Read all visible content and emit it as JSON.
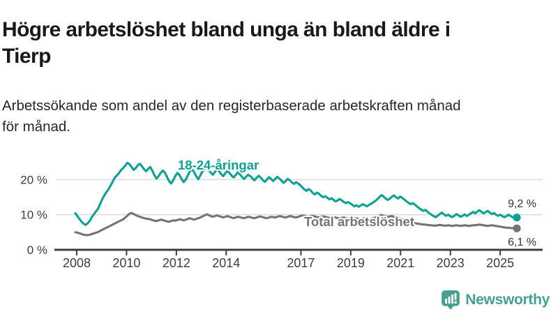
{
  "header": {
    "title_line1": "Högre arbetslöshet bland unga än bland äldre i",
    "title_line2": "Tierp",
    "subtitle_line1": "Arbetssökande som andel av den registerbaserade arbetskraften månad",
    "subtitle_line2": "för månad."
  },
  "footer": {
    "brand": "Newsworthy"
  },
  "colors": {
    "youth": "#0ba293",
    "total": "#747474",
    "grid": "#d9d9d9",
    "axis": "#3f3f3f",
    "tick_text": "#3d3d3d",
    "value_text": "#333333",
    "brand": "#45a08f"
  },
  "chart_data": {
    "type": "line",
    "title": "Högre arbetslöshet bland unga än bland äldre i Tierp",
    "subtitle": "Arbetssökande som andel av den registerbaserade arbetskraften månad för månad.",
    "x_unit": "month",
    "x_start": "2008-01",
    "x_end": "2025-09",
    "x_ticks": [
      2008,
      2010,
      2012,
      2014,
      2017,
      2019,
      2021,
      2023,
      2025
    ],
    "y_ticks": [
      0,
      10,
      20
    ],
    "y_suffix": " %",
    "ylim": [
      0,
      26
    ],
    "grid": "horizontal",
    "legend_position": "inline-labels",
    "series": [
      {
        "name": "18-24-åringar",
        "color": "#0ba293",
        "end_label": "9,2 %",
        "end_value": 9.2,
        "values": [
          10.4,
          9.6,
          8.8,
          8.0,
          7.4,
          7.1,
          7.6,
          8.3,
          9.4,
          10.2,
          11.0,
          11.8,
          13.2,
          14.5,
          15.6,
          16.5,
          17.3,
          18.4,
          19.5,
          20.6,
          21.2,
          21.9,
          22.8,
          23.3,
          24.0,
          24.8,
          24.4,
          23.6,
          22.8,
          23.3,
          24.1,
          24.5,
          23.8,
          23.0,
          22.4,
          23.1,
          23.6,
          22.5,
          21.2,
          20.3,
          21.0,
          21.9,
          22.6,
          22.0,
          20.8,
          19.6,
          18.9,
          19.8,
          21.0,
          21.9,
          21.3,
          20.2,
          19.3,
          20.0,
          21.2,
          22.4,
          23.0,
          22.2,
          21.0,
          20.1,
          21.2,
          22.3,
          23.1,
          23.6,
          22.9,
          22.0,
          21.4,
          22.2,
          23.0,
          22.4,
          21.6,
          21.0,
          21.8,
          22.5,
          21.9,
          21.2,
          20.6,
          21.3,
          22.1,
          21.5,
          20.8,
          20.2,
          20.8,
          21.4,
          21.0,
          20.4,
          19.8,
          20.5,
          21.1,
          20.6,
          19.9,
          19.4,
          20.0,
          20.7,
          20.2,
          19.6,
          20.2,
          20.8,
          20.3,
          19.7,
          19.1,
          19.6,
          20.2,
          19.8,
          19.2,
          18.8,
          19.3,
          18.9,
          18.4,
          17.8,
          17.2,
          16.8,
          17.3,
          16.9,
          16.2,
          15.8,
          16.3,
          16.0,
          15.4,
          15.0,
          15.3,
          14.8,
          14.4,
          14.7,
          14.2,
          13.8,
          14.1,
          14.5,
          14.0,
          13.6,
          13.3,
          13.6,
          13.2,
          12.8,
          12.4,
          12.7,
          12.3,
          12.6,
          13.0,
          12.7,
          12.4,
          12.8,
          13.1,
          13.5,
          13.9,
          14.4,
          15.0,
          15.6,
          15.2,
          14.6,
          14.2,
          14.6,
          15.1,
          15.5,
          15.0,
          14.6,
          15.2,
          14.8,
          14.3,
          13.8,
          13.4,
          13.0,
          13.3,
          12.9,
          12.4,
          11.9,
          11.5,
          11.1,
          11.4,
          10.9,
          10.4,
          10.0,
          9.6,
          9.3,
          9.7,
          10.2,
          10.6,
          10.1,
          9.7,
          10.0,
          9.6,
          9.3,
          9.7,
          10.2,
          9.8,
          9.4,
          9.7,
          10.1,
          9.6,
          10.0,
          10.4,
          10.8,
          10.4,
          10.9,
          11.3,
          10.8,
          10.4,
          10.7,
          11.1,
          10.6,
          10.2,
          10.5,
          10.0,
          9.7,
          10.0,
          9.6,
          9.3,
          9.6,
          10.0,
          9.6,
          9.3,
          9.0,
          9.2
        ]
      },
      {
        "name": "Total arbetslöshet",
        "color": "#747474",
        "end_label": "6,1 %",
        "end_value": 6.1,
        "values": [
          5.0,
          4.9,
          4.7,
          4.5,
          4.3,
          4.2,
          4.2,
          4.3,
          4.5,
          4.7,
          4.9,
          5.1,
          5.4,
          5.7,
          6.0,
          6.3,
          6.6,
          6.9,
          7.2,
          7.5,
          7.8,
          8.1,
          8.4,
          8.7,
          9.2,
          9.7,
          10.3,
          10.5,
          10.2,
          9.9,
          9.6,
          9.4,
          9.2,
          9.0,
          8.9,
          8.8,
          8.7,
          8.5,
          8.3,
          8.2,
          8.4,
          8.6,
          8.5,
          8.3,
          8.1,
          8.0,
          8.2,
          8.4,
          8.3,
          8.5,
          8.7,
          8.6,
          8.4,
          8.6,
          8.8,
          9.0,
          8.8,
          8.6,
          8.8,
          9.0,
          9.2,
          9.5,
          9.8,
          10.1,
          9.9,
          9.6,
          9.4,
          9.6,
          9.8,
          9.6,
          9.4,
          9.2,
          9.4,
          9.6,
          9.4,
          9.2,
          9.0,
          9.2,
          9.4,
          9.3,
          9.1,
          9.0,
          9.2,
          9.4,
          9.3,
          9.1,
          9.0,
          9.2,
          9.4,
          9.5,
          9.3,
          9.1,
          9.0,
          9.2,
          9.4,
          9.3,
          9.2,
          9.4,
          9.6,
          9.5,
          9.3,
          9.2,
          9.4,
          9.6,
          9.5,
          9.3,
          9.2,
          9.4,
          9.6,
          9.8,
          9.7,
          9.5,
          9.4,
          9.6,
          9.7,
          9.5,
          9.3,
          9.2,
          9.4,
          9.5,
          9.4,
          9.2,
          9.1,
          9.3,
          9.4,
          9.2,
          9.0,
          8.9,
          9.1,
          9.2,
          9.0,
          8.9,
          8.8,
          8.7,
          8.9,
          9.0,
          8.8,
          8.7,
          8.9,
          9.0,
          8.8,
          8.7,
          8.8,
          9.0,
          9.2,
          9.4,
          9.7,
          9.9,
          9.7,
          9.5,
          9.4,
          9.5,
          9.6,
          9.4,
          9.2,
          9.0,
          8.9,
          8.7,
          8.5,
          8.3,
          8.1,
          7.9,
          7.8,
          7.6,
          7.5,
          7.4,
          7.3,
          7.2,
          7.2,
          7.1,
          7.0,
          7.0,
          6.9,
          6.9,
          7.0,
          7.1,
          7.0,
          6.9,
          6.9,
          7.0,
          6.9,
          6.8,
          6.9,
          7.0,
          6.9,
          6.8,
          6.9,
          7.0,
          6.9,
          6.8,
          6.9,
          7.0,
          7.0,
          7.1,
          7.2,
          7.1,
          7.0,
          6.9,
          6.8,
          6.9,
          7.0,
          6.9,
          6.8,
          6.7,
          6.6,
          6.5,
          6.4,
          6.3,
          6.3,
          6.2,
          6.2,
          6.1,
          6.1
        ]
      }
    ]
  }
}
